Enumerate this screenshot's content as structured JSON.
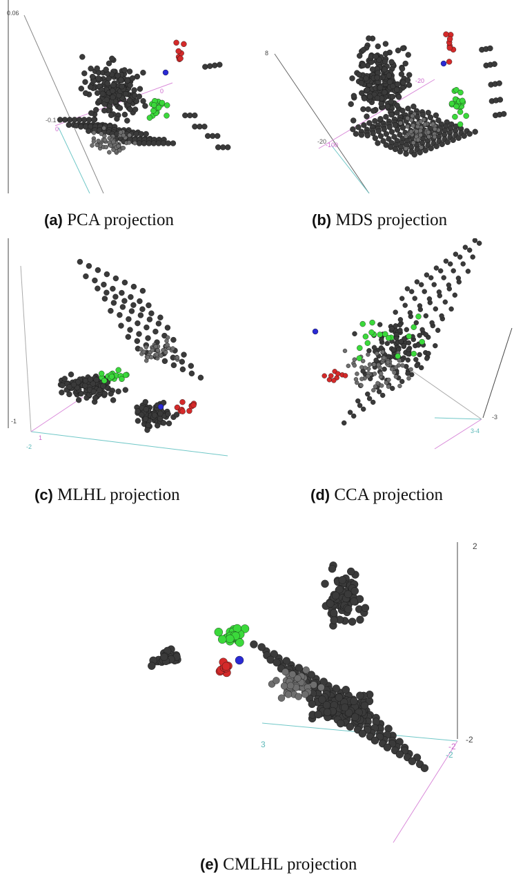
{
  "chart_data": [
    {
      "type": "scatter",
      "title": "",
      "caption_tag": "(a)",
      "caption_text": "PCA projection",
      "tick_labels": [
        "0.06",
        "-0.1",
        "0",
        "0"
      ],
      "series": [
        {
          "name": "",
          "color": "#3a3a3a"
        },
        {
          "name": "",
          "color": "#3bd93b"
        },
        {
          "name": "",
          "color": "#d42a2a"
        },
        {
          "name": "",
          "color": "#2a2ad4"
        }
      ]
    },
    {
      "type": "scatter",
      "title": "",
      "caption_tag": "(b)",
      "caption_text": "MDS projection",
      "tick_labels": [
        "8",
        "-20",
        "-100",
        "-20"
      ],
      "series": [
        {
          "name": "",
          "color": "#3a3a3a"
        },
        {
          "name": "",
          "color": "#3bd93b"
        },
        {
          "name": "",
          "color": "#d42a2a"
        },
        {
          "name": "",
          "color": "#2a2ad4"
        }
      ]
    },
    {
      "type": "scatter",
      "title": "",
      "caption_tag": "(c)",
      "caption_text": "MLHL projection",
      "tick_labels": [
        "-1",
        "1",
        "-2"
      ],
      "series": [
        {
          "name": "",
          "color": "#3a3a3a"
        },
        {
          "name": "",
          "color": "#3bd93b"
        },
        {
          "name": "",
          "color": "#d42a2a"
        },
        {
          "name": "",
          "color": "#2a2ad4"
        }
      ]
    },
    {
      "type": "scatter",
      "title": "",
      "caption_tag": "(d)",
      "caption_text": "CCA projection",
      "tick_labels": [
        "-3",
        "3-4"
      ],
      "series": [
        {
          "name": "",
          "color": "#3a3a3a"
        },
        {
          "name": "",
          "color": "#3bd93b"
        },
        {
          "name": "",
          "color": "#d42a2a"
        },
        {
          "name": "",
          "color": "#2a2ad4"
        }
      ]
    },
    {
      "type": "scatter",
      "title": "",
      "caption_tag": "(e)",
      "caption_text": "CMLHL projection",
      "tick_labels": [
        "2",
        "-2",
        "3",
        "-2",
        "-2"
      ],
      "series": [
        {
          "name": "",
          "color": "#3a3a3a"
        },
        {
          "name": "",
          "color": "#3bd93b"
        },
        {
          "name": "",
          "color": "#d42a2a"
        },
        {
          "name": "",
          "color": "#2a2ad4"
        }
      ]
    }
  ]
}
